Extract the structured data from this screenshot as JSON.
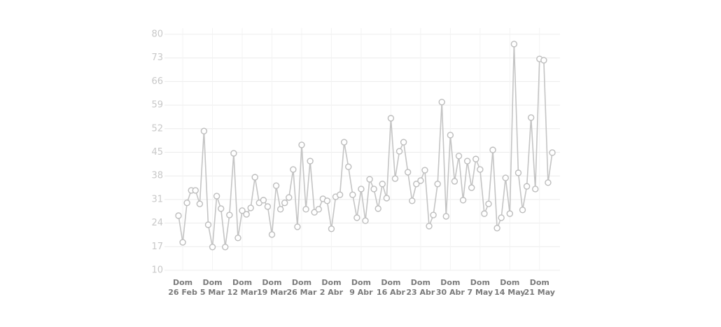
{
  "chart_data": {
    "type": "line",
    "categories": [
      null,
      [
        "Dom",
        "26 Feb"
      ],
      null,
      null,
      null,
      null,
      null,
      null,
      [
        "Dom",
        "5 Mar"
      ],
      null,
      null,
      null,
      null,
      null,
      null,
      [
        "Dom",
        "12 Mar"
      ],
      null,
      null,
      null,
      null,
      null,
      null,
      [
        "Dom",
        "19 Mar"
      ],
      null,
      null,
      null,
      null,
      null,
      null,
      [
        "Dom",
        "26 Mar"
      ],
      null,
      null,
      null,
      null,
      null,
      null,
      [
        "Dom",
        "2 Abr"
      ],
      null,
      null,
      null,
      null,
      null,
      null,
      [
        "Dom",
        "9 Abr"
      ],
      null,
      null,
      null,
      null,
      null,
      null,
      [
        "Dom",
        "16 Abr"
      ],
      null,
      null,
      null,
      null,
      null,
      null,
      [
        "Dom",
        "23 Abr"
      ],
      null,
      null,
      null,
      null,
      null,
      null,
      [
        "Dom",
        "30 Abr"
      ],
      null,
      null,
      null,
      null,
      null,
      null,
      [
        "Dom",
        "7 May"
      ],
      null,
      null,
      null,
      null,
      null,
      null,
      [
        "Dom",
        "14 May"
      ],
      null,
      null,
      null,
      null,
      null,
      null,
      [
        "Dom",
        "21 May"
      ],
      null,
      null,
      null
    ],
    "values": [
      26.2,
      18.3,
      30,
      33.7,
      33.7,
      29.7,
      51.3,
      23.5,
      16.9,
      32,
      28.3,
      16.9,
      26.4,
      44.7,
      19.6,
      27.7,
      26.6,
      28.5,
      37.6,
      30,
      30.8,
      28.9,
      20.6,
      35.1,
      28.1,
      30,
      31.6,
      39.9,
      22.9,
      47.2,
      28.1,
      42.4,
      27.2,
      28.1,
      31.2,
      30.6,
      22.3,
      31.8,
      32.4,
      48,
      40.7,
      32.4,
      25.6,
      34.1,
      24.7,
      37,
      34.1,
      28.3,
      35.6,
      31.4,
      55.1,
      37.2,
      45.3,
      48,
      39.1,
      30.6,
      35.6,
      36.6,
      39.7,
      23.1,
      26.4,
      35.6,
      59.9,
      26,
      50.1,
      36.4,
      43.9,
      30.8,
      42.4,
      34.5,
      43,
      39.9,
      26.8,
      29.7,
      45.7,
      22.5,
      25.6,
      37.4,
      26.8,
      77.1,
      38.9,
      27.9,
      34.9,
      55.3,
      34.1,
      72.7,
      72.3,
      36,
      44.9
    ],
    "color": "#c4c4c4",
    "ylim": [
      10,
      80
    ],
    "yticks": [
      10,
      17,
      24,
      31,
      38,
      45,
      52,
      59,
      66,
      73,
      80
    ],
    "grid": true
  }
}
